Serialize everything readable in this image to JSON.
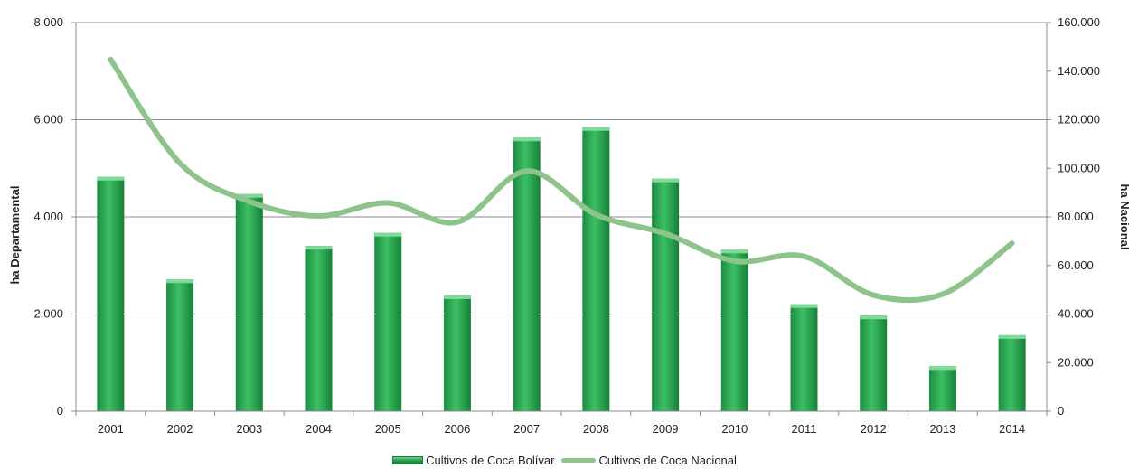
{
  "chart_data": {
    "type": "bar",
    "categories": [
      "2001",
      "2002",
      "2003",
      "2004",
      "2005",
      "2006",
      "2007",
      "2008",
      "2009",
      "2010",
      "2011",
      "2012",
      "2013",
      "2014"
    ],
    "series": [
      {
        "name": "Cultivos de Coca Bolívar",
        "type": "bar",
        "axis": "left",
        "color": "#23a04c",
        "values": [
          4824,
          2711,
          4470,
          3402,
          3670,
          2382,
          5632,
          5847,
          4786,
          3324,
          2200,
          1968,
          925,
          1565
        ]
      },
      {
        "name": "Cultivos de Coca Nacional",
        "type": "line",
        "axis": "right",
        "color": "#8ec48b",
        "values": [
          144807,
          102071,
          86340,
          80350,
          85750,
          77870,
          98899,
          80953,
          73139,
          61812,
          63762,
          47788,
          48189,
          69132
        ]
      }
    ],
    "y_left": {
      "label": "ha Departamental",
      "ylim": [
        0,
        8000
      ],
      "ticks": [
        "0",
        "2.000",
        "4.000",
        "6.000",
        "8.000"
      ]
    },
    "y_right": {
      "label": "ha Nacional",
      "ylim": [
        0,
        160000
      ],
      "ticks": [
        "0",
        "20.000",
        "40.000",
        "60.000",
        "80.000",
        "100.000",
        "120.000",
        "140.000",
        "160.000"
      ]
    },
    "grid": true,
    "legend_position": "bottom"
  }
}
